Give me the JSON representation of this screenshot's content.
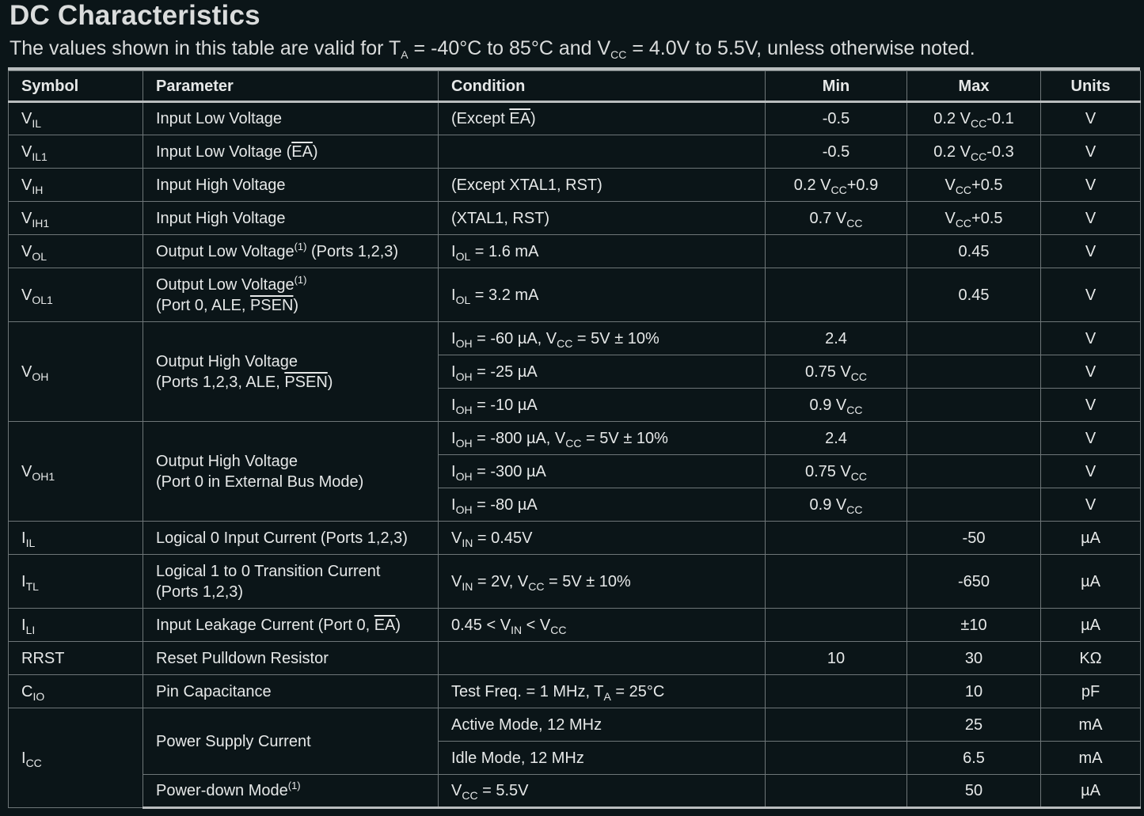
{
  "title": "DC Characteristics",
  "subtitle": {
    "pre": "The values shown in this table are valid for T",
    "ta_sub": "A",
    "mid1": " = -40°C to 85°C and V",
    "vcc_sub": "CC",
    "post": " = 4.0V to 5.5V, unless otherwise noted."
  },
  "headers": {
    "symbol": "Symbol",
    "parameter": "Parameter",
    "condition": "Condition",
    "min": "Min",
    "max": "Max",
    "units": "Units"
  },
  "rows": {
    "vil": {
      "sym": "V",
      "sub": "IL",
      "param": "Input Low Voltage",
      "cond_pre": "(Except ",
      "cond_ov": "EA",
      "cond_post": ")",
      "min": "-0.5",
      "max_pre": "0.2 V",
      "max_sub": "CC",
      "max_post": "-0.1",
      "units": "V"
    },
    "vil1": {
      "sym": "V",
      "sub": "IL1",
      "param_pre": "Input Low Voltage (",
      "param_ov": "EA",
      "param_post": ")",
      "min": "-0.5",
      "max_pre": "0.2 V",
      "max_sub": "CC",
      "max_post": "-0.3",
      "units": "V"
    },
    "vih": {
      "sym": "V",
      "sub": "IH",
      "param": "Input High Voltage",
      "cond": "(Except XTAL1, RST)",
      "min_pre": "0.2 V",
      "min_sub": "CC",
      "min_post": "+0.9",
      "max_pre": "V",
      "max_sub": "CC",
      "max_post": "+0.5",
      "units": "V"
    },
    "vih1": {
      "sym": "V",
      "sub": "IH1",
      "param": "Input High Voltage",
      "cond": "(XTAL1, RST)",
      "min_pre": "0.7 V",
      "min_sub": "CC",
      "max_pre": "V",
      "max_sub": "CC",
      "max_post": "+0.5",
      "units": "V"
    },
    "vol": {
      "sym": "V",
      "sub": "OL",
      "param_pre": "Output Low Voltage",
      "param_sup": "(1)",
      "param_post": " (Ports 1,2,3)",
      "cond_pre": "I",
      "cond_sub": "OL",
      "cond_post": " = 1.6 mA",
      "max": "0.45",
      "units": "V"
    },
    "vol1": {
      "sym": "V",
      "sub": "OL1",
      "param_l1": "Output Low Voltage",
      "param_sup": "(1)",
      "param_l2_pre": "(Port 0, ALE, ",
      "param_l2_ov": "PSEN",
      "param_l2_post": ")",
      "cond_pre": "I",
      "cond_sub": "OL",
      "cond_post": " = 3.2 mA",
      "max": "0.45",
      "units": "V"
    },
    "voh": {
      "sym": "V",
      "sub": "OH",
      "param_l1": "Output High Voltage",
      "param_l2_pre": "(Ports 1,2,3, ALE, ",
      "param_l2_ov": "PSEN",
      "param_l2_post": ")",
      "c1_pre": "I",
      "c1_sub": "OH",
      "c1_mid": " = -60 µA, V",
      "c1_sub2": "CC",
      "c1_post": " = 5V ± 10%",
      "c1_min": "2.4",
      "c1_units": "V",
      "c2_pre": "I",
      "c2_sub": "OH",
      "c2_post": " = -25 µA",
      "c2_min_pre": "0.75 V",
      "c2_min_sub": "CC",
      "c2_units": "V",
      "c3_pre": "I",
      "c3_sub": "OH",
      "c3_post": " = -10 µA",
      "c3_min_pre": "0.9 V",
      "c3_min_sub": "CC",
      "c3_units": "V"
    },
    "voh1": {
      "sym": "V",
      "sub": "OH1",
      "param_l1": "Output High Voltage",
      "param_l2": "(Port 0 in External Bus Mode)",
      "c1_pre": "I",
      "c1_sub": "OH",
      "c1_mid": " = -800 µA, V",
      "c1_sub2": "CC",
      "c1_post": " = 5V ± 10%",
      "c1_min": "2.4",
      "c1_units": "V",
      "c2_pre": "I",
      "c2_sub": "OH",
      "c2_post": " = -300 µA",
      "c2_min_pre": "0.75 V",
      "c2_min_sub": "CC",
      "c2_units": "V",
      "c3_pre": "I",
      "c3_sub": "OH",
      "c3_post": " = -80 µA",
      "c3_min_pre": "0.9 V",
      "c3_min_sub": "CC",
      "c3_units": "V"
    },
    "iil": {
      "sym": "I",
      "sub": "IL",
      "param": "Logical 0 Input Current (Ports 1,2,3)",
      "cond_pre": "V",
      "cond_sub": "IN",
      "cond_post": " = 0.45V",
      "max": "-50",
      "units": "µA"
    },
    "itl": {
      "sym": "I",
      "sub": "TL",
      "param_l1": "Logical 1 to 0 Transition Current",
      "param_l2": "(Ports 1,2,3)",
      "cond_pre": "V",
      "cond_sub": "IN",
      "cond_mid": " = 2V, V",
      "cond_sub2": "CC",
      "cond_post": " = 5V ± 10%",
      "max": "-650",
      "units": "µA"
    },
    "ili": {
      "sym": "I",
      "sub": "LI",
      "param_pre": "Input Leakage Current (Port 0, ",
      "param_ov": "EA",
      "param_post": ")",
      "cond_pre": "0.45 < V",
      "cond_sub": "IN",
      "cond_mid": " < V",
      "cond_sub2": "CC",
      "max": "±10",
      "units": "µA"
    },
    "rrst": {
      "sym": "RRST",
      "param": "Reset Pulldown Resistor",
      "min": "10",
      "max": "30",
      "units": "KΩ"
    },
    "cio": {
      "sym": "C",
      "sub": "IO",
      "param": "Pin Capacitance",
      "cond_pre": "Test Freq. = 1 MHz, T",
      "cond_sub": "A",
      "cond_post": " = 25°C",
      "max": "10",
      "units": "pF"
    },
    "icc": {
      "sym": "I",
      "sub": "CC",
      "param": "Power Supply Current",
      "c1": "Active Mode, 12 MHz",
      "c1_max": "25",
      "c1_units": "mA",
      "c2": "Idle Mode, 12 MHz",
      "c2_max": "6.5",
      "c2_units": "mA",
      "pd_pre": "Power-down Mode",
      "pd_sup": "(1)",
      "pd_cond_pre": "V",
      "pd_cond_sub": "CC",
      "pd_cond_post": " = 5.5V",
      "pd_max": "50",
      "pd_units": "µA"
    }
  }
}
